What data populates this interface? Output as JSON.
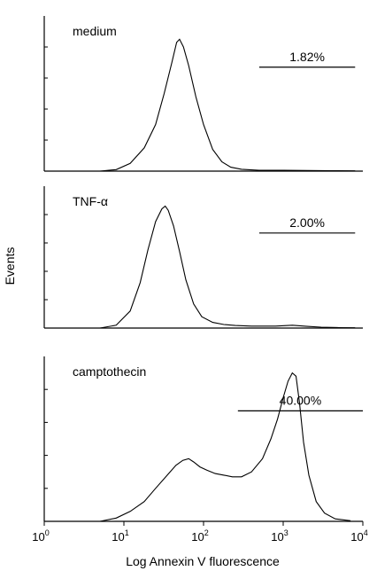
{
  "chart_data": [
    {
      "type": "line",
      "panel_label": "medium",
      "gate_label": "1.82%",
      "gate_range": [
        500,
        8000
      ],
      "x_scale": "log",
      "xlim": [
        1,
        10000
      ],
      "x": [
        5,
        8,
        12,
        18,
        25,
        32,
        40,
        46,
        50,
        56,
        65,
        80,
        100,
        130,
        170,
        220,
        300,
        500,
        1000,
        2000,
        4000,
        8000
      ],
      "y": [
        0,
        0.01,
        0.05,
        0.15,
        0.3,
        0.5,
        0.7,
        0.83,
        0.85,
        0.8,
        0.68,
        0.48,
        0.3,
        0.14,
        0.06,
        0.025,
        0.012,
        0.005,
        0.005,
        0.004,
        0.003,
        0.002
      ]
    },
    {
      "type": "line",
      "panel_label": "TNF-α",
      "gate_label": "2.00%",
      "gate_range": [
        500,
        8000
      ],
      "x_scale": "log",
      "xlim": [
        1,
        10000
      ],
      "x": [
        5,
        8,
        12,
        16,
        20,
        25,
        30,
        33,
        36,
        42,
        50,
        60,
        75,
        95,
        130,
        180,
        250,
        400,
        800,
        1300,
        2000,
        3000,
        5000,
        8000
      ],
      "y": [
        0,
        0.02,
        0.12,
        0.32,
        0.55,
        0.75,
        0.84,
        0.86,
        0.83,
        0.72,
        0.54,
        0.34,
        0.17,
        0.08,
        0.04,
        0.025,
        0.018,
        0.014,
        0.014,
        0.02,
        0.012,
        0.006,
        0.003,
        0.002
      ]
    },
    {
      "type": "line",
      "panel_label": "camptothecin",
      "gate_label": "40.00%",
      "gate_range": [
        270,
        10000
      ],
      "x_scale": "log",
      "xlim": [
        1,
        10000
      ],
      "x": [
        5,
        8,
        12,
        18,
        25,
        35,
        45,
        55,
        65,
        75,
        90,
        110,
        140,
        180,
        230,
        300,
        400,
        550,
        700,
        850,
        1000,
        1150,
        1300,
        1450,
        1600,
        1800,
        2100,
        2600,
        3300,
        4500,
        7000
      ],
      "y": [
        0,
        0.02,
        0.06,
        0.12,
        0.2,
        0.28,
        0.34,
        0.37,
        0.38,
        0.36,
        0.33,
        0.31,
        0.29,
        0.28,
        0.27,
        0.27,
        0.3,
        0.38,
        0.5,
        0.62,
        0.75,
        0.85,
        0.9,
        0.88,
        0.72,
        0.48,
        0.28,
        0.12,
        0.05,
        0.015,
        0.004
      ]
    }
  ],
  "x_axis": {
    "label": "Log Annexin V fluorescence",
    "ticks": [
      {
        "value": 1,
        "base": "10",
        "exp": "0"
      },
      {
        "value": 10,
        "base": "10",
        "exp": "1"
      },
      {
        "value": 100,
        "base": "10",
        "exp": "2"
      },
      {
        "value": 1000,
        "base": "10",
        "exp": "3"
      },
      {
        "value": 10000,
        "base": "10",
        "exp": "4"
      }
    ]
  },
  "y_axis": {
    "label": "Events"
  }
}
